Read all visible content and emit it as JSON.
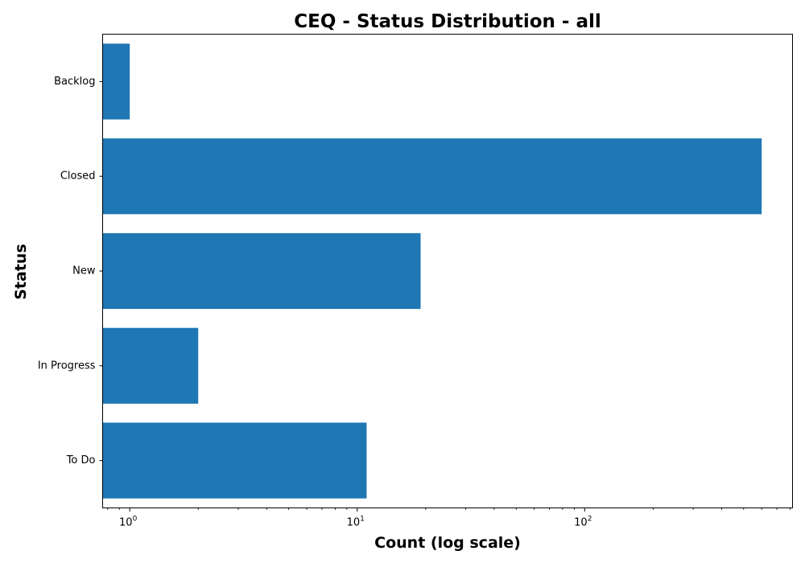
{
  "chart_data": {
    "type": "bar",
    "orientation": "horizontal",
    "title": "CEQ - Status Distribution - all",
    "xlabel": "Count (log scale)",
    "ylabel": "Status",
    "x_scale": "log",
    "xlim": [
      0.76,
      820
    ],
    "categories": [
      "To Do",
      "In Progress",
      "New",
      "Closed",
      "Backlog"
    ],
    "values": [
      11,
      2,
      19,
      600,
      1
    ],
    "x_ticks": [
      {
        "value": 1,
        "base": "10",
        "exponent": "0"
      },
      {
        "value": 10,
        "base": "10",
        "exponent": "1"
      },
      {
        "value": 100,
        "base": "10",
        "exponent": "2"
      }
    ],
    "bar_color": "#1f77b4",
    "grid": false,
    "legend": "none"
  }
}
